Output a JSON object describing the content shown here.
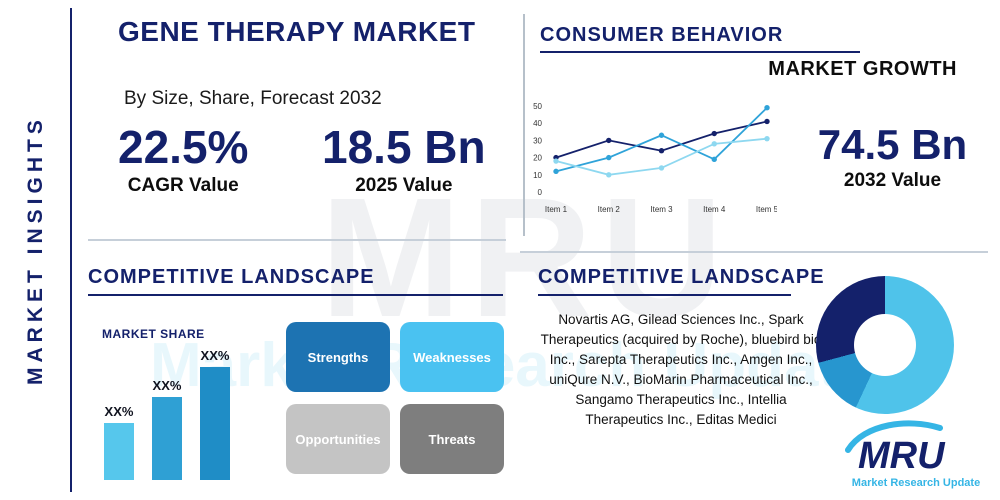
{
  "page": {
    "title": "GENE THERAPY MARKET",
    "subtitle": "By Size, Share, Forecast 2032"
  },
  "sidebar": {
    "label": "MARKET INSIGHTS"
  },
  "stats": {
    "cagr_value": "22.5%",
    "cagr_label": "CAGR Value",
    "value_2025": "18.5 Bn",
    "label_2025": "2025 Value",
    "value_2032": "74.5 Bn",
    "label_2032": "2032 Value"
  },
  "sections": {
    "consumer_behavior": "CONSUMER BEHAVIOR",
    "market_growth": "MARKET GROWTH",
    "competitive_left": "COMPETITIVE LANDSCAPE",
    "competitive_right": "COMPETITIVE LANDSCAPE",
    "market_share": "MARKET SHARE"
  },
  "swot": [
    {
      "label": "Strengths",
      "color": "#1d73b2"
    },
    {
      "label": "Weaknesses",
      "color": "#4ac2f1"
    },
    {
      "label": "Opportunities",
      "color": "#c4c4c4"
    },
    {
      "label": "Threats",
      "color": "#7e7e7e"
    }
  ],
  "companies": "Novartis AG, Gilead Sciences Inc., Spark Therapeutics (acquired by Roche), bluebird bio Inc., Sarepta Therapeutics Inc., Amgen Inc., uniQure N.V., BioMarin Pharmaceutical Inc., Sangamo Therapeutics Inc., Intellia Therapeutics Inc., Editas Medici",
  "logo": {
    "name": "MRU",
    "tagline": "Market Research Update"
  },
  "watermark": {
    "primary": "MRU",
    "secondary": "Market Research Update"
  },
  "colors": {
    "navy": "#14216b",
    "cyan": "#4fc3ea",
    "medium_blue": "#2796cf"
  },
  "chart_data": [
    {
      "type": "line",
      "title": "MARKET GROWTH",
      "x": [
        "Item 1",
        "Item 2",
        "Item 3",
        "Item 4",
        "Item 5"
      ],
      "series": [
        {
          "name": "series-navy",
          "color": "#14216b",
          "values": [
            20,
            30,
            24,
            34,
            41
          ]
        },
        {
          "name": "series-medium",
          "color": "#2fa3d9",
          "values": [
            12,
            20,
            33,
            19,
            49
          ]
        },
        {
          "name": "series-light",
          "color": "#8ed8f0",
          "values": [
            18,
            10,
            14,
            28,
            31
          ]
        }
      ],
      "ylim": [
        0,
        50
      ],
      "yticks": [
        0,
        10,
        20,
        30,
        40,
        50
      ],
      "grid": false,
      "legend": "none"
    },
    {
      "type": "bar",
      "title": "MARKET SHARE",
      "categories": [
        "XX%",
        "XX%",
        "XX%"
      ],
      "values": [
        38,
        55,
        75
      ],
      "colors": [
        "#56c7ec",
        "#2fa0d4",
        "#1f8dc6"
      ],
      "ylabel": "",
      "xlabel": ""
    },
    {
      "type": "pie",
      "title": "",
      "note": "decorative donut, no labels shown",
      "slices": [
        {
          "color": "#4fc3ea",
          "deg": 205
        },
        {
          "color": "#2796cf",
          "deg": 50
        },
        {
          "color": "#14216b",
          "deg": 105
        }
      ]
    }
  ]
}
